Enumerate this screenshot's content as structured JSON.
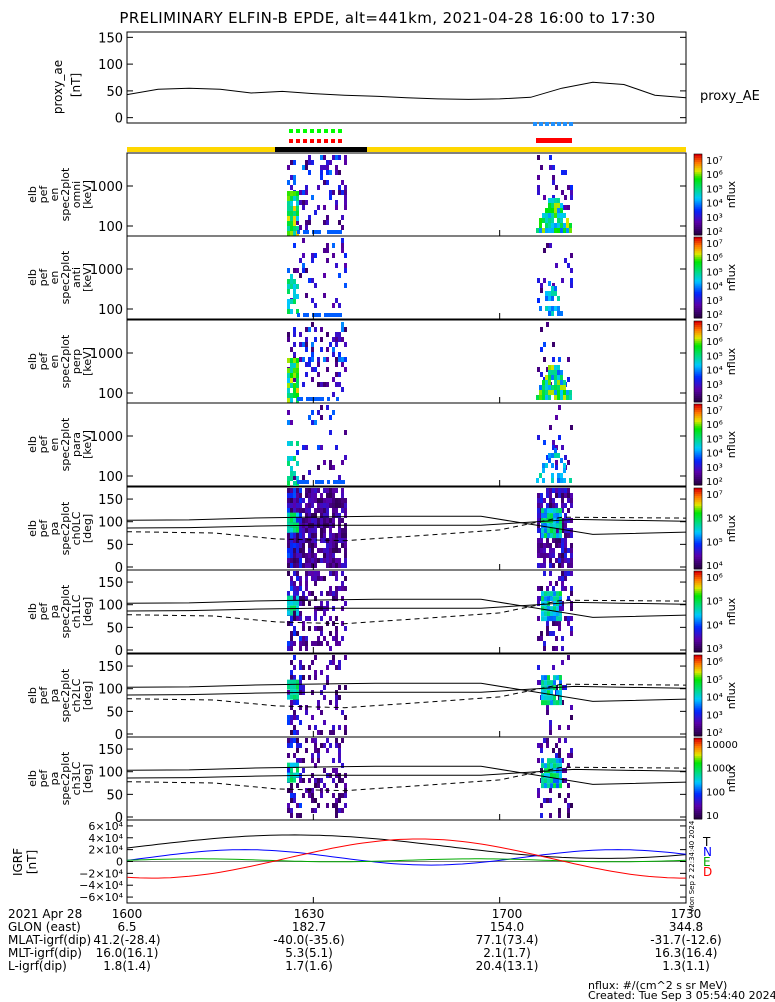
{
  "title": "PRELIMINARY ELFIN-B EPDE, alt=441km, 2021-04-28 16:00 to 17:30",
  "chart_data": [
    {
      "type": "line",
      "ylabel": "proxy_ae [nT]",
      "legend": "proxy_AE",
      "yticks": [
        "150",
        "100",
        "50",
        "0"
      ],
      "ylim": [
        -10,
        160
      ],
      "x_minutes": [
        0,
        5,
        10,
        15,
        20,
        25,
        30,
        35,
        40,
        45,
        50,
        55,
        60,
        65,
        70,
        75,
        80,
        85,
        90
      ],
      "values": [
        43,
        53,
        55,
        53,
        46,
        49,
        45,
        42,
        40,
        37,
        35,
        34,
        35,
        38,
        55,
        66,
        62,
        42,
        37
      ]
    },
    {
      "type": "heatmap",
      "panels": [
        {
          "ylabel": [
            "elb",
            "pef",
            "en",
            "spec2plot",
            "omni",
            "[keV]"
          ],
          "yticks": [
            "1000",
            "100"
          ]
        },
        {
          "ylabel": [
            "elb",
            "pef",
            "en",
            "spec2plot",
            "anti",
            "[keV]"
          ],
          "yticks": [
            "1000",
            "100"
          ]
        },
        {
          "ylabel": [
            "elb",
            "pef",
            "en",
            "spec2plot",
            "perp",
            "[keV]"
          ],
          "yticks": [
            "1000",
            "100"
          ]
        },
        {
          "ylabel": [
            "elb",
            "pef",
            "en",
            "spec2plot",
            "para",
            "[keV]"
          ],
          "yticks": [
            "1000",
            "100"
          ]
        }
      ],
      "colorbar_label": "nflux",
      "colorbar_ticks": [
        "10⁷",
        "10⁶",
        "10⁵",
        "10⁴",
        "10³",
        "10²"
      ]
    },
    {
      "type": "heatmap",
      "panels": [
        {
          "ylabel": [
            "elb",
            "pef",
            "pa",
            "spec2plot",
            "ch0LC",
            "[deg]"
          ],
          "yticks": [
            "150",
            "100",
            "50",
            "0"
          ],
          "cbar": [
            "10⁷",
            "10⁶",
            "10⁵",
            "10⁴"
          ]
        },
        {
          "ylabel": [
            "elb",
            "pef",
            "pa",
            "spec2plot",
            "ch1LC",
            "[deg]"
          ],
          "yticks": [
            "150",
            "100",
            "50",
            "0"
          ],
          "cbar": [
            "10⁶",
            "10⁵",
            "10⁴",
            "10³"
          ]
        },
        {
          "ylabel": [
            "elb",
            "pef",
            "pa",
            "spec2plot",
            "ch2LC",
            "[deg]"
          ],
          "yticks": [
            "150",
            "100",
            "50",
            "0"
          ],
          "cbar": [
            "10⁶",
            "10⁵",
            "10⁴",
            "10³",
            "10²"
          ]
        },
        {
          "ylabel": [
            "elb",
            "pef",
            "pa",
            "spec2plot",
            "ch3LC",
            "[deg]"
          ],
          "yticks": [
            "150",
            "100",
            "50",
            "0"
          ],
          "cbar": [
            "10000",
            "1000",
            "100",
            "10"
          ]
        }
      ],
      "colorbar_label": "nflux"
    },
    {
      "type": "line",
      "ylabel": "IGRF [nT]",
      "yticks": [
        "6×10⁴",
        "4×10⁴",
        "2×10⁴",
        "0",
        "−2×10⁴",
        "−4×10⁴",
        "−6×10⁴"
      ],
      "legend": [
        "T",
        "N",
        "E",
        "D"
      ],
      "colors": {
        "T": "#000000",
        "N": "#0000ff",
        "E": "#00aa00",
        "D": "#ff0000"
      }
    }
  ],
  "xaxis": {
    "rows": [
      [
        "2021 Apr 28",
        "1600",
        "1630",
        "1700",
        "1730"
      ],
      [
        "GLON (east)",
        "6.5",
        "182.7",
        "154.0",
        "344.8"
      ],
      [
        "MLAT-igrf(dip)",
        "41.2(-28.4)",
        "-40.0(-35.6)",
        "77.1(73.4)",
        "-31.7(-12.6)"
      ],
      [
        "MLT-igrf(dip)",
        "16.0(16.1)",
        "5.3(5.1)",
        "2.1(1.7)",
        "16.3(16.4)"
      ],
      [
        "L-igrf(dip)",
        "1.8(1.4)",
        "1.7(1.6)",
        "20.4(13.1)",
        "1.3(1.1)"
      ]
    ]
  },
  "footer": {
    "units": "nflux: #/(cm^2 s sr MeV)",
    "created": "Created: Tue Sep  3 05:54:40 2024"
  },
  "side_stamp": "Mon Sep  2 22:34:40 2024",
  "colors": {
    "sunlit": "#ffd700",
    "eclipse": "#000000",
    "science_green": "#00ff00",
    "science_red": "#ff0000",
    "science_blue": "#1e90ff"
  }
}
